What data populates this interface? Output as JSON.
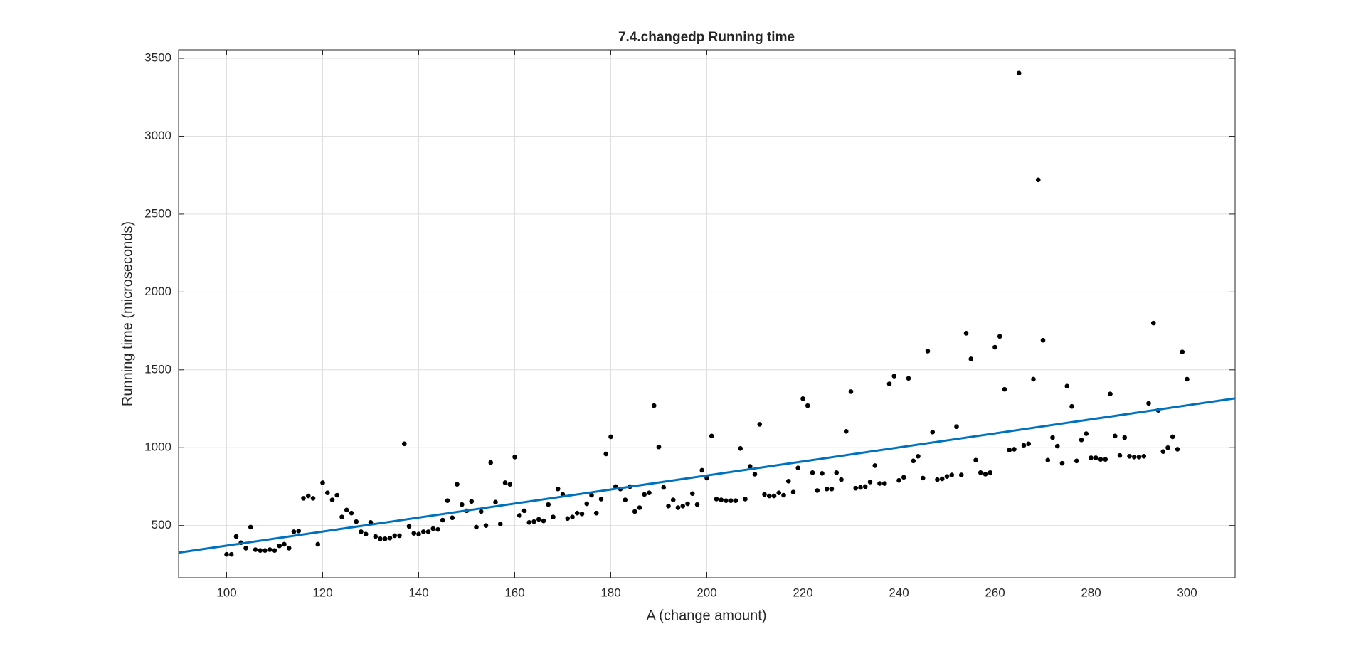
{
  "chart_data": {
    "type": "scatter",
    "title": "7.4.changedp Running time",
    "x_label": "A (change amount)",
    "y_label": "Running time (microseconds)",
    "xlim": [
      90,
      310
    ],
    "ylim": [
      165,
      3555
    ],
    "xticks": [
      100,
      120,
      140,
      160,
      180,
      200,
      220,
      240,
      260,
      280,
      300
    ],
    "yticks": [
      500,
      1000,
      1500,
      2000,
      2500,
      3000,
      3500
    ],
    "grid": true,
    "series": [
      {
        "color": "#000000",
        "x": [
          100,
          101,
          102,
          103,
          104,
          105,
          106,
          107,
          108,
          109,
          110,
          111,
          112,
          113,
          114,
          115,
          116,
          117,
          118,
          119,
          120,
          121,
          122,
          123,
          124,
          125,
          126,
          127,
          128,
          129,
          130,
          131,
          132,
          133,
          134,
          135,
          136,
          137,
          138,
          139,
          140,
          141,
          142,
          143,
          144,
          145,
          146,
          147,
          148,
          149,
          150,
          151,
          152,
          153,
          154,
          155,
          156,
          157,
          158,
          159,
          160,
          161,
          162,
          163,
          164,
          165,
          166,
          167,
          168,
          169,
          170,
          171,
          172,
          173,
          174,
          175,
          176,
          177,
          178,
          179,
          180,
          181,
          182,
          183,
          184,
          185,
          186,
          187,
          188,
          189,
          190,
          191,
          192,
          193,
          194,
          195,
          196,
          197,
          198,
          199,
          200,
          201,
          202,
          203,
          204,
          205,
          206,
          207,
          208,
          209,
          210,
          211,
          212,
          213,
          214,
          215,
          216,
          217,
          218,
          219,
          220,
          221,
          222,
          223,
          224,
          225,
          226,
          227,
          228,
          229,
          230,
          231,
          232,
          233,
          234,
          235,
          236,
          237,
          238,
          239,
          240,
          241,
          242,
          243,
          244,
          245,
          246,
          247,
          248,
          249,
          250,
          251,
          252,
          253,
          254,
          255,
          256,
          257,
          258,
          259,
          260,
          261,
          262,
          263,
          264,
          265,
          266,
          267,
          268,
          269,
          270,
          271,
          272,
          273,
          274,
          275,
          276,
          277,
          278,
          279,
          280,
          281,
          282,
          283,
          284,
          285,
          286,
          287,
          288,
          289,
          290,
          291,
          292,
          293,
          294,
          295,
          296,
          297,
          298,
          299,
          300
        ],
        "values": [
          315,
          315,
          430,
          390,
          355,
          490,
          345,
          340,
          340,
          345,
          340,
          370,
          380,
          355,
          460,
          465,
          675,
          690,
          675,
          380,
          775,
          710,
          665,
          695,
          555,
          600,
          580,
          525,
          460,
          445,
          520,
          430,
          415,
          415,
          420,
          435,
          435,
          1025,
          495,
          450,
          445,
          460,
          460,
          480,
          475,
          535,
          660,
          550,
          765,
          635,
          595,
          655,
          490,
          590,
          500,
          905,
          650,
          510,
          775,
          765,
          940,
          565,
          595,
          520,
          525,
          540,
          530,
          635,
          555,
          735,
          700,
          545,
          555,
          580,
          575,
          640,
          695,
          580,
          670,
          960,
          1070,
          750,
          735,
          665,
          750,
          590,
          615,
          700,
          710,
          1270,
          1005,
          745,
          625,
          665,
          615,
          625,
          640,
          705,
          635,
          855,
          805,
          1075,
          670,
          665,
          660,
          660,
          660,
          995,
          670,
          880,
          830,
          1150,
          700,
          690,
          690,
          710,
          695,
          785,
          715,
          870,
          1315,
          1270,
          840,
          725,
          835,
          735,
          735,
          840,
          795,
          1105,
          1360,
          740,
          745,
          750,
          780,
          885,
          770,
          770,
          1410,
          1460,
          790,
          810,
          1445,
          915,
          945,
          805,
          1620,
          1100,
          795,
          800,
          815,
          825,
          1135,
          825,
          1735,
          1570,
          920,
          840,
          830,
          840,
          1645,
          1715,
          1375,
          985,
          990,
          3405,
          1015,
          1025,
          1440,
          2720,
          1690,
          920,
          1065,
          1010,
          900,
          1395,
          1265,
          915,
          1050,
          1090,
          935,
          935,
          925,
          925,
          1345,
          1075,
          950,
          1065,
          945,
          940,
          940,
          945,
          1285,
          1800,
          1240,
          975,
          1000,
          1070,
          990,
          1615,
          1440
        ]
      },
      {
        "color": "#0072bd",
        "kind": "line",
        "x": [
          90,
          310
        ],
        "values": [
          326,
          1317
        ]
      }
    ]
  }
}
